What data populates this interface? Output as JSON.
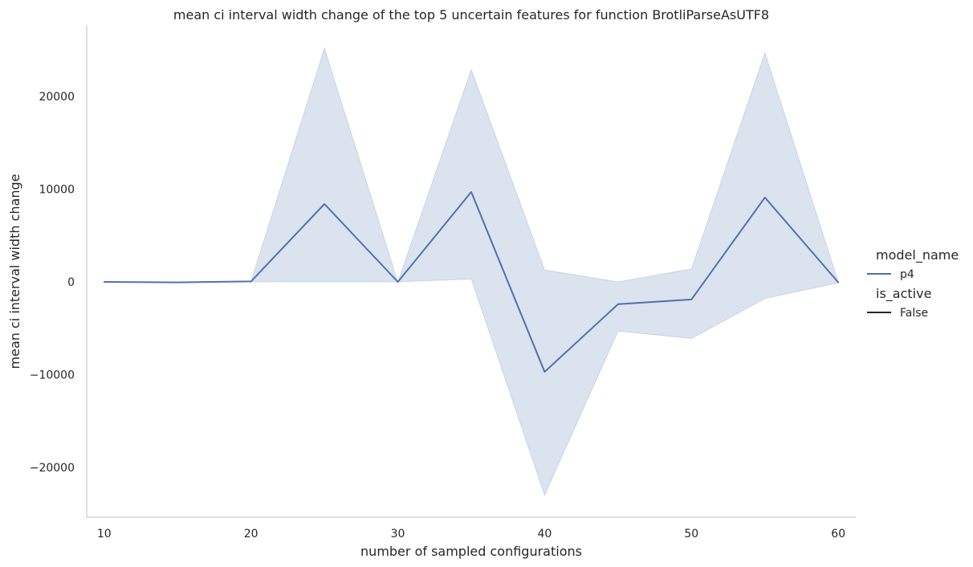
{
  "chart_data": {
    "type": "line",
    "title": "mean ci interval width change of the top 5 uncertain features for function BrotliParseAsUTF8",
    "xlabel": "number of sampled configurations",
    "ylabel": "mean ci interval width change",
    "x": [
      10,
      15,
      20,
      25,
      30,
      35,
      40,
      45,
      50,
      55,
      60
    ],
    "xlim": [
      7.5,
      62.5
    ],
    "ylim": [
      -25500,
      27500
    ],
    "xticks": [
      10,
      20,
      30,
      40,
      50,
      60
    ],
    "xtick_labels": [
      "10",
      "20",
      "30",
      "40",
      "50",
      "60"
    ],
    "yticks": [
      -20000,
      -10000,
      0,
      10000,
      20000
    ],
    "ytick_labels": [
      "−20000",
      "−10000",
      "0",
      "10000",
      "20000"
    ],
    "grid": false,
    "legend_position": "right",
    "series": [
      {
        "name": "p4",
        "color": "#4c72b0",
        "band_color": "#4c72b0",
        "values": [
          0,
          -50,
          50,
          8400,
          0,
          9700,
          -9700,
          -2400,
          -1900,
          9100,
          -50
        ],
        "ci_lower": [
          0,
          -50,
          0,
          0,
          0,
          300,
          -23000,
          -5300,
          -6100,
          -1800,
          -100
        ],
        "ci_upper": [
          0,
          -50,
          50,
          25200,
          0,
          22900,
          1300,
          0,
          1400,
          24700,
          0
        ]
      }
    ],
    "legend": [
      {
        "title": "model_name",
        "entries": [
          {
            "label": "p4",
            "color": "#4c72b0"
          }
        ]
      },
      {
        "title": "is_active",
        "entries": [
          {
            "label": "False",
            "color": "#262626"
          }
        ]
      }
    ]
  }
}
